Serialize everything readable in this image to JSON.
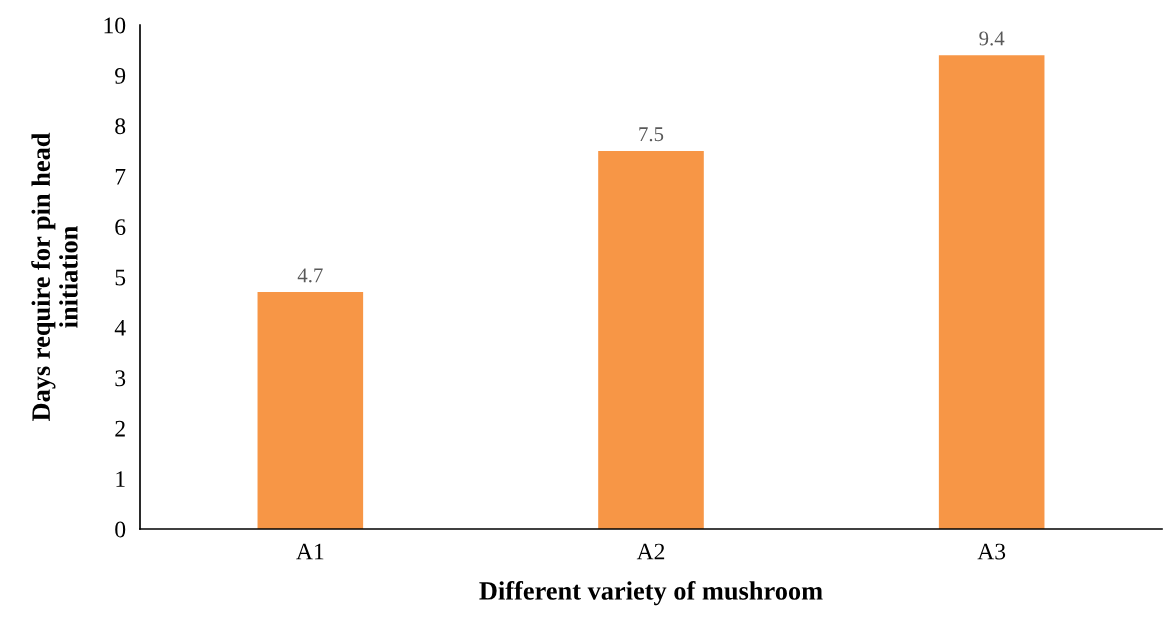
{
  "chart_data": {
    "type": "bar",
    "xlabel": "Different variety of mushroom",
    "ylabel": "Days require for pin head\ninitiation",
    "categories": [
      "A1",
      "A2",
      "A3"
    ],
    "values": [
      4.7,
      7.5,
      9.4
    ],
    "color": "#f79646",
    "ylim": [
      0,
      10
    ],
    "yticks": [
      0,
      1,
      2,
      3,
      4,
      5,
      6,
      7,
      8,
      9,
      10
    ],
    "grid": false,
    "data_labels": true
  }
}
